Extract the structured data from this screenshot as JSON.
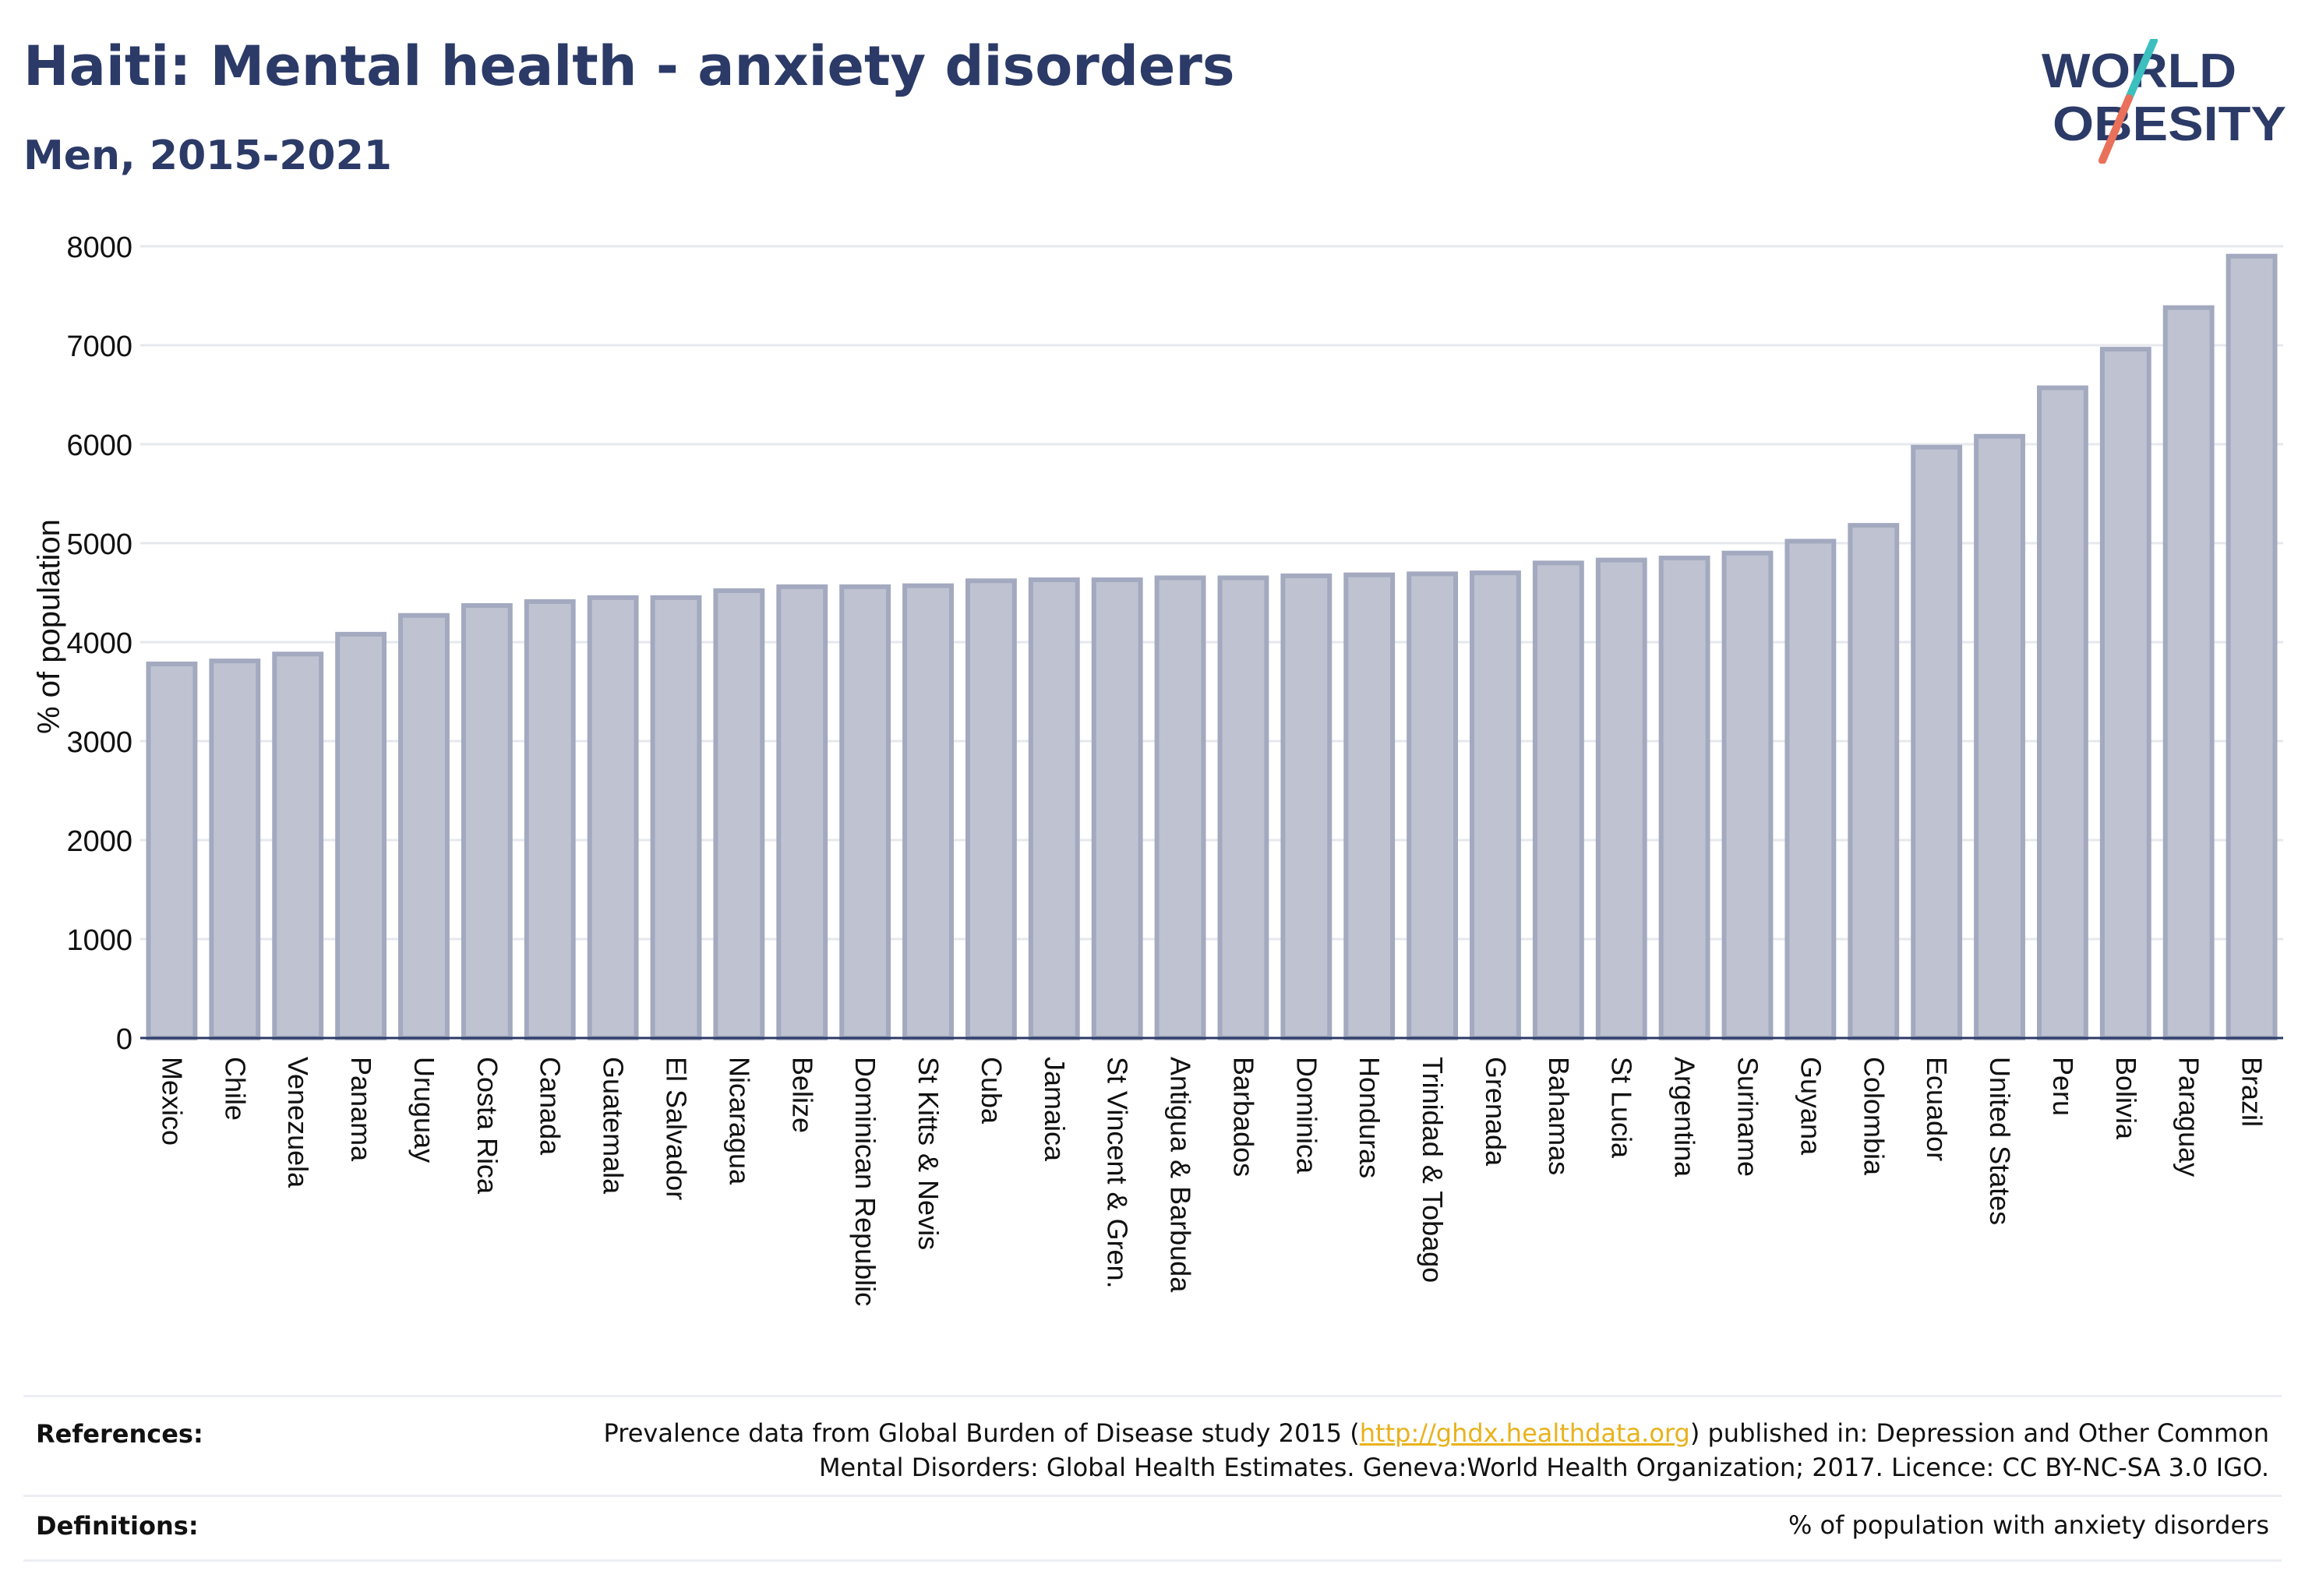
{
  "header": {
    "title": "Haiti: Mental health - anxiety disorders",
    "subtitle": "Men, 2015-2021"
  },
  "logo": {
    "line1": "WORLD",
    "line2": "OBESITY",
    "accent_teal": "#3bbfbf",
    "accent_coral": "#e9705a"
  },
  "colors": {
    "bar_fill": "#bfc3d1",
    "bar_stroke": "#a3a9bf",
    "text": "#2b3a67",
    "grid": "#e6e8ee"
  },
  "chart_data": {
    "type": "bar",
    "title": "",
    "xlabel": "",
    "ylabel": "% of population",
    "ylim": [
      0,
      8000
    ],
    "yticks": [
      0,
      1000,
      2000,
      3000,
      4000,
      5000,
      6000,
      7000,
      8000
    ],
    "grid": true,
    "categories": [
      "Mexico",
      "Chile",
      "Venezuela",
      "Panama",
      "Uruguay",
      "Costa Rica",
      "Canada",
      "Guatemala",
      "El Salvador",
      "Nicaragua",
      "Belize",
      "Dominican Republic",
      "St Kitts & Nevis",
      "Cuba",
      "Jamaica",
      "St Vincent & Gren.",
      "Antigua & Barbuda",
      "Barbados",
      "Dominica",
      "Honduras",
      "Trinidad & Tobago",
      "Grenada",
      "Bahamas",
      "St Lucia",
      "Argentina",
      "Suriname",
      "Guyana",
      "Colombia",
      "Ecuador",
      "United States",
      "Peru",
      "Bolivia",
      "Paraguay",
      "Brazil"
    ],
    "values": [
      3780,
      3810,
      3880,
      4080,
      4270,
      4370,
      4410,
      4450,
      4450,
      4520,
      4560,
      4560,
      4570,
      4620,
      4630,
      4630,
      4650,
      4650,
      4670,
      4680,
      4690,
      4700,
      4800,
      4830,
      4850,
      4900,
      5020,
      5180,
      5970,
      6080,
      6570,
      6960,
      7380,
      7900
    ]
  },
  "references": {
    "label": "References:",
    "text_before_link": "Prevalence data from Global Burden of Disease study 2015 (",
    "link": "http://ghdx.healthdata.org",
    "text_after_link": ") published in: Depression and Other Common",
    "line2": "Mental Disorders: Global Health Estimates. Geneva:World Health Organization; 2017. Licence: CC BY-NC-SA 3.0 IGO."
  },
  "definitions": {
    "label": "Definitions:",
    "text": "% of population with anxiety disorders"
  }
}
